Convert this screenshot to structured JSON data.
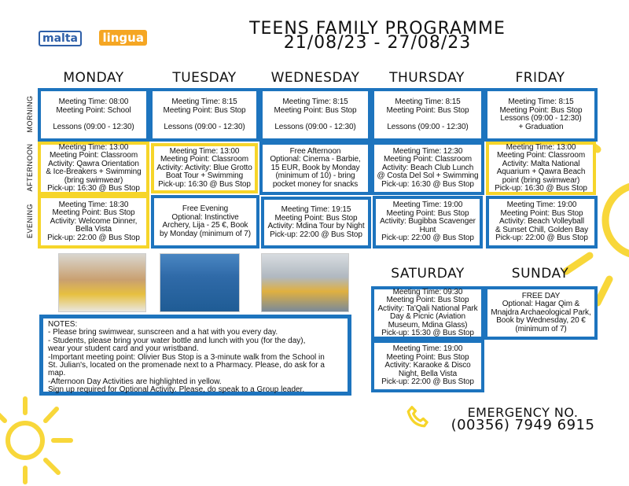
{
  "logo": {
    "line1": "malta",
    "line2": "lingua",
    "colors": {
      "blue": "#2e5fa8",
      "orange": "#f5a623"
    }
  },
  "header": {
    "title": "TEENS FAMILY PROGRAMME",
    "dates": "21/08/23 - 27/08/23"
  },
  "periods": [
    "MORNING",
    "AFTERNOON",
    "EVENING"
  ],
  "days": [
    {
      "name": "MONDAY",
      "morning": "Meeting Time: 08:00\nMeeting Point: School\n\nLessons (09:00 - 12:30)",
      "afternoon": "Meeting Time: 13:00\nMeeting Point: Classroom\nActivity: Qawra Orientation\n& Ice-Breakers + Swimming\n(bring swimwear)\nPick-up: 16:30 @ Bus Stop",
      "evening": "Meeting Time: 18:30\nMeeting Point: Bus Stop\nActivity: Welcome Dinner,\nBella Vista\nPick-up: 22:00 @ Bus Stop"
    },
    {
      "name": "TUESDAY",
      "morning": "Meeting Time: 8:15\nMeeting Point: Bus Stop\n\nLessons (09:00 - 12:30)",
      "afternoon": "Meeting Time: 13:00\nMeeting Point: Classroom\nActivity: Activity: Blue Grotto\nBoat Tour + Swimming\nPick-up: 16:30 @ Bus Stop",
      "evening": "Free Evening\nOptional: Instinctive\nArchery, Lija - 25 €, Book\nby Monday (minimum of 7)"
    },
    {
      "name": "WEDNESDAY",
      "morning": "Meeting Time: 8:15\nMeeting Point: Bus Stop\n\nLessons (09:00 - 12:30)",
      "afternoon": "Free Afternoon\nOptional: Cinema - Barbie,\n15 EUR, Book by Monday\n(minimum of 10) - bring\npocket money for snacks",
      "evening": "Meeting Time: 19:15\nMeeting Point: Bus Stop\nActivity: Mdina Tour by Night\nPick-up: 22:00 @ Bus Stop"
    },
    {
      "name": "THURSDAY",
      "morning": "Meeting Time: 8:15\nMeeting Point: Bus Stop\n\nLessons (09:00 - 12:30)",
      "afternoon": "Meeting Time: 12:30\nMeeting Point: Classroom\nActivity: Beach Club Lunch\n@ Costa Del Sol + Swimming\nPick-up: 16:30 @ Bus Stop",
      "evening": "Meeting Time: 19:00\nMeeting Point: Bus Stop\nActivity: Bugibba Scavenger\nHunt\nPick-up: 22:00 @ Bus Stop"
    },
    {
      "name": "FRIDAY",
      "morning": "Meeting Time: 8:15\nMeeting Point: Bus Stop\nLessons (09:00 - 12:30)\n+ Graduation",
      "afternoon": "Meeting Time: 13:00\nMeeting Point: Classroom\nActivity: Malta National\nAquarium + Qawra Beach\npoint (bring swimwear)\nPick-up: 16:30 @ Bus Stop",
      "evening": "Meeting Time: 19:00\nMeeting Point: Bus Stop\nActivity: Beach Volleyball\n& Sunset Chill, Golden Bay\nPick-up: 22:00 @ Bus Stop"
    }
  ],
  "weekend": [
    {
      "name": "SATURDAY",
      "day": "Meeting Time: 09:30\nMeeting Point: Bus Stop\nActivity: Ta'Qali National Park\nDay & Picnic (Aviation\nMuseum, Mdina Glass)\nPick-up: 15:30 @ Bus Stop",
      "evening": "Meeting Time: 19:00\nMeeting Point: Bus Stop\nActivity: Karaoke & Disco\nNight, Bella Vista\nPick-up: 22:00 @ Bus Stop"
    },
    {
      "name": "SUNDAY",
      "day": "FREE DAY\nOptional: Hagar Qim &\nMnajdra Archaeological Park,\nBook by Wednesday, 20 €\n(minimum of 7)"
    }
  ],
  "notes": "NOTES:\n- Please bring swimwear, sunscreen and a hat with you every day.\n- Students, please bring your water bottle and lunch with you (for the day),\n wear your student card and your wristband.\n-Important meeting point: Olivier Bus Stop is a 3-minute walk from the School in\nSt. Julian's, located on the promenade next to a Pharmacy. Please, do ask for a\nmap.\n-Afternoon Day Activities are highlighted in yellow.\nSign up required for Optional Activity. Please, do speak to a Group leader.",
  "emergency": {
    "label": "EMERGENCY NO.",
    "number": "(00356) 7949 6915",
    "icon": "phone-icon"
  },
  "colors": {
    "blue_border": "#1d74be",
    "yellow_border": "#f6d52a",
    "sun": "#f8d73a"
  }
}
